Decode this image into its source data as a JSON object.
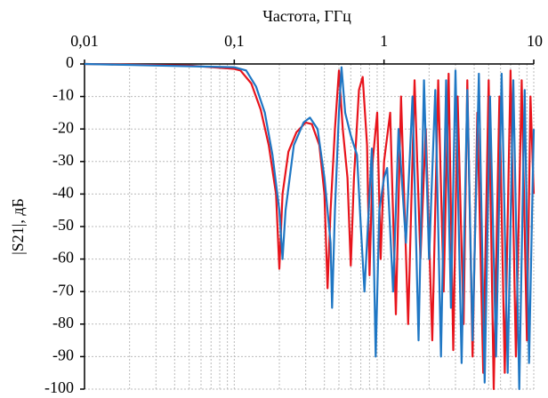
{
  "chart_data": {
    "type": "line",
    "xlabel": "Частота, ГГц",
    "ylabel": "|S21|, дБ",
    "xscale": "log",
    "xlim": [
      0.01,
      10
    ],
    "xticks": [
      {
        "value": 0.01,
        "label": "0,01"
      },
      {
        "value": 0.1,
        "label": "0,1"
      },
      1,
      10
    ],
    "ylim": [
      -100,
      0
    ],
    "yticks": [
      0,
      -10,
      -20,
      -30,
      -40,
      -50,
      -60,
      -70,
      -80,
      -90,
      -100
    ],
    "grid": true,
    "series": [
      {
        "color": "#e8141c",
        "x": [
          0.01,
          0.05,
          0.1,
          0.11,
          0.13,
          0.15,
          0.17,
          0.19,
          0.2,
          0.21,
          0.23,
          0.26,
          0.3,
          0.33,
          0.37,
          0.4,
          0.42,
          0.44,
          0.47,
          0.5,
          0.53,
          0.57,
          0.6,
          0.63,
          0.68,
          0.72,
          0.77,
          0.8,
          0.84,
          0.9,
          0.95,
          1,
          1.1,
          1.2,
          1.3,
          1.45,
          1.6,
          1.75,
          1.9,
          2.1,
          2.3,
          2.5,
          2.7,
          2.9,
          3.1,
          3.4,
          3.6,
          3.9,
          4.2,
          4.6,
          5,
          5.4,
          5.9,
          6.4,
          7,
          7.6,
          8.3,
          9,
          9.5,
          10
        ],
        "values": [
          0,
          -0.5,
          -1.5,
          -2,
          -6,
          -14,
          -25,
          -40,
          -63,
          -40,
          -27,
          -21,
          -18,
          -18.5,
          -25,
          -40,
          -69,
          -45,
          -20,
          -2,
          -20,
          -35,
          -62,
          -35,
          -8,
          -4,
          -25,
          -65,
          -30,
          -15,
          -60,
          -30,
          -15,
          -77,
          -10,
          -80,
          -5,
          -60,
          -20,
          -85,
          -5,
          -70,
          -3,
          -88,
          -10,
          -80,
          -5,
          -90,
          -15,
          -95,
          -5,
          -100,
          -10,
          -95,
          -2,
          -90,
          -5,
          -85,
          -10,
          -40
        ]
      },
      {
        "color": "#1f77c4",
        "x": [
          0.01,
          0.1,
          0.12,
          0.14,
          0.16,
          0.18,
          0.2,
          0.21,
          0.22,
          0.25,
          0.29,
          0.32,
          0.36,
          0.4,
          0.44,
          0.45,
          0.47,
          0.5,
          0.52,
          0.55,
          0.6,
          0.66,
          0.7,
          0.74,
          0.78,
          0.83,
          0.88,
          0.93,
          1,
          1.05,
          1.15,
          1.25,
          1.4,
          1.55,
          1.7,
          1.85,
          2,
          2.2,
          2.4,
          2.6,
          2.8,
          3,
          3.3,
          3.6,
          3.9,
          4.3,
          4.7,
          5.1,
          5.6,
          6.1,
          6.7,
          7.3,
          8,
          8.7,
          9.3,
          10
        ],
        "values": [
          0,
          -1,
          -2,
          -7,
          -15,
          -28,
          -45,
          -60,
          -45,
          -25,
          -18,
          -16.5,
          -20,
          -35,
          -55,
          -75,
          -45,
          -15,
          -1,
          -15,
          -22,
          -28,
          -50,
          -70,
          -50,
          -26,
          -90,
          -45,
          -35,
          -32,
          -70,
          -20,
          -55,
          -10,
          -85,
          -5,
          -60,
          -8,
          -90,
          -5,
          -75,
          -2,
          -92,
          -8,
          -85,
          -3,
          -98,
          -10,
          -90,
          -3,
          -95,
          -5,
          -100,
          -8,
          -92,
          -20
        ]
      }
    ]
  }
}
